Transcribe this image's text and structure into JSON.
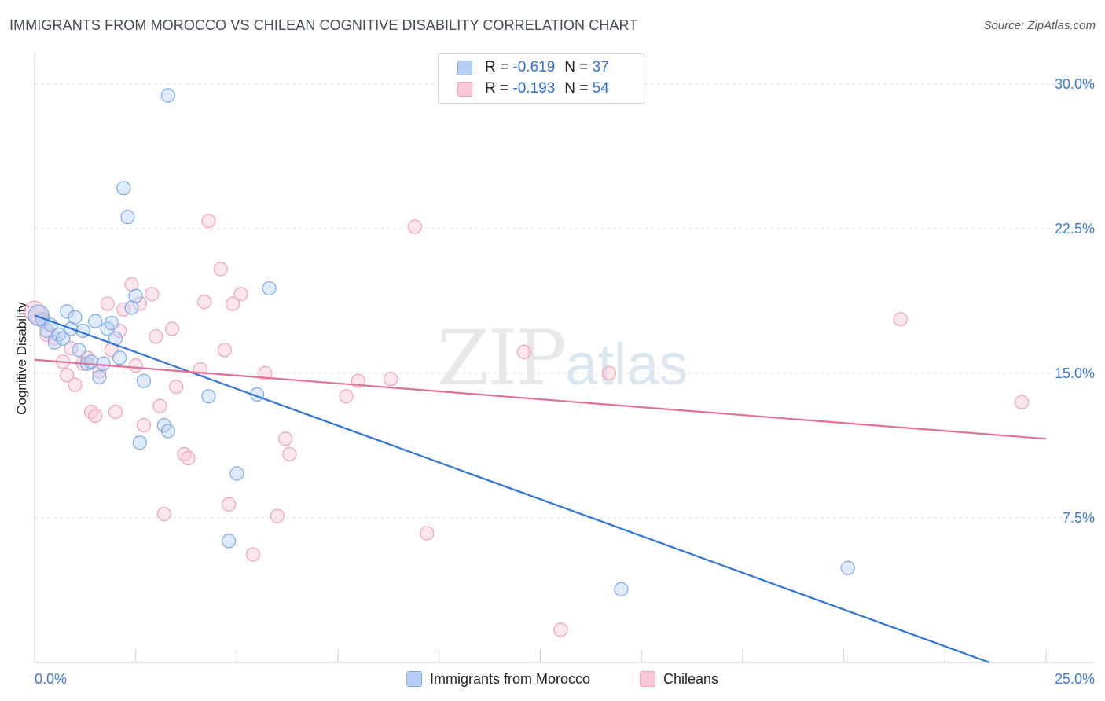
{
  "title": "IMMIGRANTS FROM MOROCCO VS CHILEAN COGNITIVE DISABILITY CORRELATION CHART",
  "source": "Source: ZipAtlas.com",
  "watermark": {
    "zip": "ZIP",
    "atlas": "atlas"
  },
  "legend": {
    "rows": [
      {
        "r_label": "R = ",
        "r_value": "-0.619",
        "n_label": "N = ",
        "n_value": "37"
      },
      {
        "r_label": "R = ",
        "r_value": "-0.193",
        "n_label": "N = ",
        "n_value": "54"
      }
    ]
  },
  "chart_data": {
    "type": "scatter",
    "title": "IMMIGRANTS FROM MOROCCO VS CHILEAN COGNITIVE DISABILITY CORRELATION CHART",
    "xlabel": "",
    "ylabel": "Cognitive Disability",
    "xlim": [
      0,
      25
    ],
    "ylim": [
      0,
      31.5
    ],
    "x_tick_labels": [
      "0.0%",
      "25.0%"
    ],
    "y_ticks": [
      7.5,
      15.0,
      22.5,
      30.0
    ],
    "y_tick_labels": [
      "7.5%",
      "15.0%",
      "22.5%",
      "30.0%"
    ],
    "grid": true,
    "legend_position": "top-center",
    "series": [
      {
        "name": "Immigrants from Morocco",
        "color": "#7aaae8",
        "fill": "#b8d0f5",
        "line_color": "#2d72d6",
        "r": -0.619,
        "n": 37,
        "trend": {
          "x": [
            0.0,
            23.6
          ],
          "y": [
            18.0,
            0.0
          ]
        },
        "points": [
          [
            0.2,
            17.8
          ],
          [
            0.3,
            17.2
          ],
          [
            0.4,
            17.5
          ],
          [
            0.5,
            16.6
          ],
          [
            0.6,
            17.0
          ],
          [
            0.7,
            16.8
          ],
          [
            0.8,
            18.2
          ],
          [
            0.9,
            17.3
          ],
          [
            1.0,
            17.9
          ],
          [
            1.1,
            16.2
          ],
          [
            1.2,
            17.2
          ],
          [
            1.3,
            15.5
          ],
          [
            1.4,
            15.6
          ],
          [
            1.5,
            17.7
          ],
          [
            1.6,
            14.8
          ],
          [
            1.7,
            15.5
          ],
          [
            1.8,
            17.3
          ],
          [
            1.9,
            17.6
          ],
          [
            2.0,
            16.8
          ],
          [
            2.1,
            15.8
          ],
          [
            2.2,
            24.6
          ],
          [
            2.3,
            23.1
          ],
          [
            2.4,
            18.4
          ],
          [
            2.5,
            19.0
          ],
          [
            2.7,
            14.6
          ],
          [
            2.6,
            11.4
          ],
          [
            3.2,
            12.3
          ],
          [
            3.3,
            12.0
          ],
          [
            3.3,
            29.4
          ],
          [
            4.3,
            13.8
          ],
          [
            4.8,
            6.3
          ],
          [
            5.0,
            9.8
          ],
          [
            5.5,
            13.9
          ],
          [
            5.8,
            19.4
          ],
          [
            14.5,
            3.8
          ],
          [
            20.1,
            4.9
          ],
          [
            0.1,
            18.0
          ]
        ]
      },
      {
        "name": "Chileans",
        "color": "#f0a0b8",
        "fill": "#f8c8d8",
        "line_color": "#e0709a",
        "r": -0.193,
        "n": 54,
        "trend": {
          "x": [
            0.0,
            25.0
          ],
          "y": [
            15.7,
            11.6
          ]
        },
        "points": [
          [
            0.1,
            18.0
          ],
          [
            0.2,
            17.7
          ],
          [
            0.3,
            17.0
          ],
          [
            0.5,
            16.8
          ],
          [
            0.7,
            15.6
          ],
          [
            0.8,
            14.9
          ],
          [
            0.9,
            16.3
          ],
          [
            1.0,
            14.4
          ],
          [
            1.2,
            15.5
          ],
          [
            1.3,
            15.8
          ],
          [
            1.4,
            13.0
          ],
          [
            1.5,
            12.8
          ],
          [
            1.6,
            15.1
          ],
          [
            1.8,
            18.6
          ],
          [
            1.9,
            16.2
          ],
          [
            2.0,
            13.0
          ],
          [
            2.1,
            17.2
          ],
          [
            2.2,
            18.3
          ],
          [
            2.4,
            19.6
          ],
          [
            2.5,
            15.4
          ],
          [
            2.6,
            18.6
          ],
          [
            2.7,
            12.3
          ],
          [
            2.9,
            19.1
          ],
          [
            3.0,
            16.9
          ],
          [
            3.1,
            13.3
          ],
          [
            3.2,
            7.7
          ],
          [
            3.4,
            17.3
          ],
          [
            3.5,
            14.3
          ],
          [
            3.7,
            10.8
          ],
          [
            3.8,
            10.6
          ],
          [
            4.1,
            15.2
          ],
          [
            4.2,
            18.7
          ],
          [
            4.3,
            22.9
          ],
          [
            4.6,
            20.4
          ],
          [
            4.7,
            16.2
          ],
          [
            4.8,
            8.2
          ],
          [
            4.9,
            18.6
          ],
          [
            5.1,
            19.1
          ],
          [
            5.4,
            5.6
          ],
          [
            5.7,
            15.0
          ],
          [
            6.0,
            7.6
          ],
          [
            6.2,
            11.6
          ],
          [
            6.3,
            10.8
          ],
          [
            7.7,
            13.8
          ],
          [
            8.0,
            14.6
          ],
          [
            8.8,
            14.7
          ],
          [
            9.4,
            22.6
          ],
          [
            9.7,
            6.7
          ],
          [
            12.1,
            16.1
          ],
          [
            13.0,
            1.7
          ],
          [
            14.2,
            15.0
          ],
          [
            21.4,
            17.8
          ],
          [
            24.4,
            13.5
          ],
          [
            0.0,
            18.2
          ]
        ]
      }
    ]
  }
}
